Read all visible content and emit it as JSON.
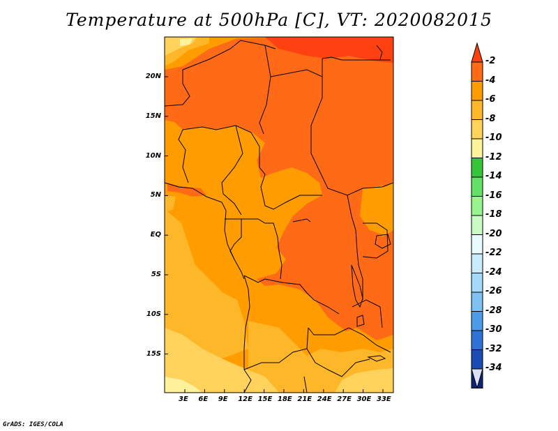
{
  "title": "Temperature at 500hPa [C], VT: 2020082015",
  "credit": "GrADS: IGES/COLA",
  "map": {
    "lat_labels": [
      "20N",
      "15N",
      "10N",
      "5N",
      "EQ",
      "5S",
      "10S",
      "15S"
    ],
    "lon_labels": [
      "3E",
      "6E",
      "9E",
      "12E",
      "15E",
      "18E",
      "21E",
      "24E",
      "27E",
      "30E",
      "33E"
    ]
  },
  "colorbar": {
    "labels": [
      "-2",
      "-4",
      "-6",
      "-8",
      "-10",
      "-12",
      "-14",
      "-16",
      "-18",
      "-20",
      "-22",
      "-24",
      "-26",
      "-28",
      "-30",
      "-32",
      "-34"
    ],
    "colors": [
      "#ff6a16",
      "#ff9d00",
      "#ffb72a",
      "#ffd25c",
      "#fff29d",
      "#36c53a",
      "#64e168",
      "#97f48f",
      "#cbfbc4",
      "#e8fcff",
      "#c9ebfc",
      "#a5d9f9",
      "#7fc1f3",
      "#4d9cea",
      "#2e72d7",
      "#1a4cb4",
      "#0c2479"
    ],
    "top_arrow_color": "#ff4010",
    "bottom_arrow_color": "#dbe0f7"
  }
}
